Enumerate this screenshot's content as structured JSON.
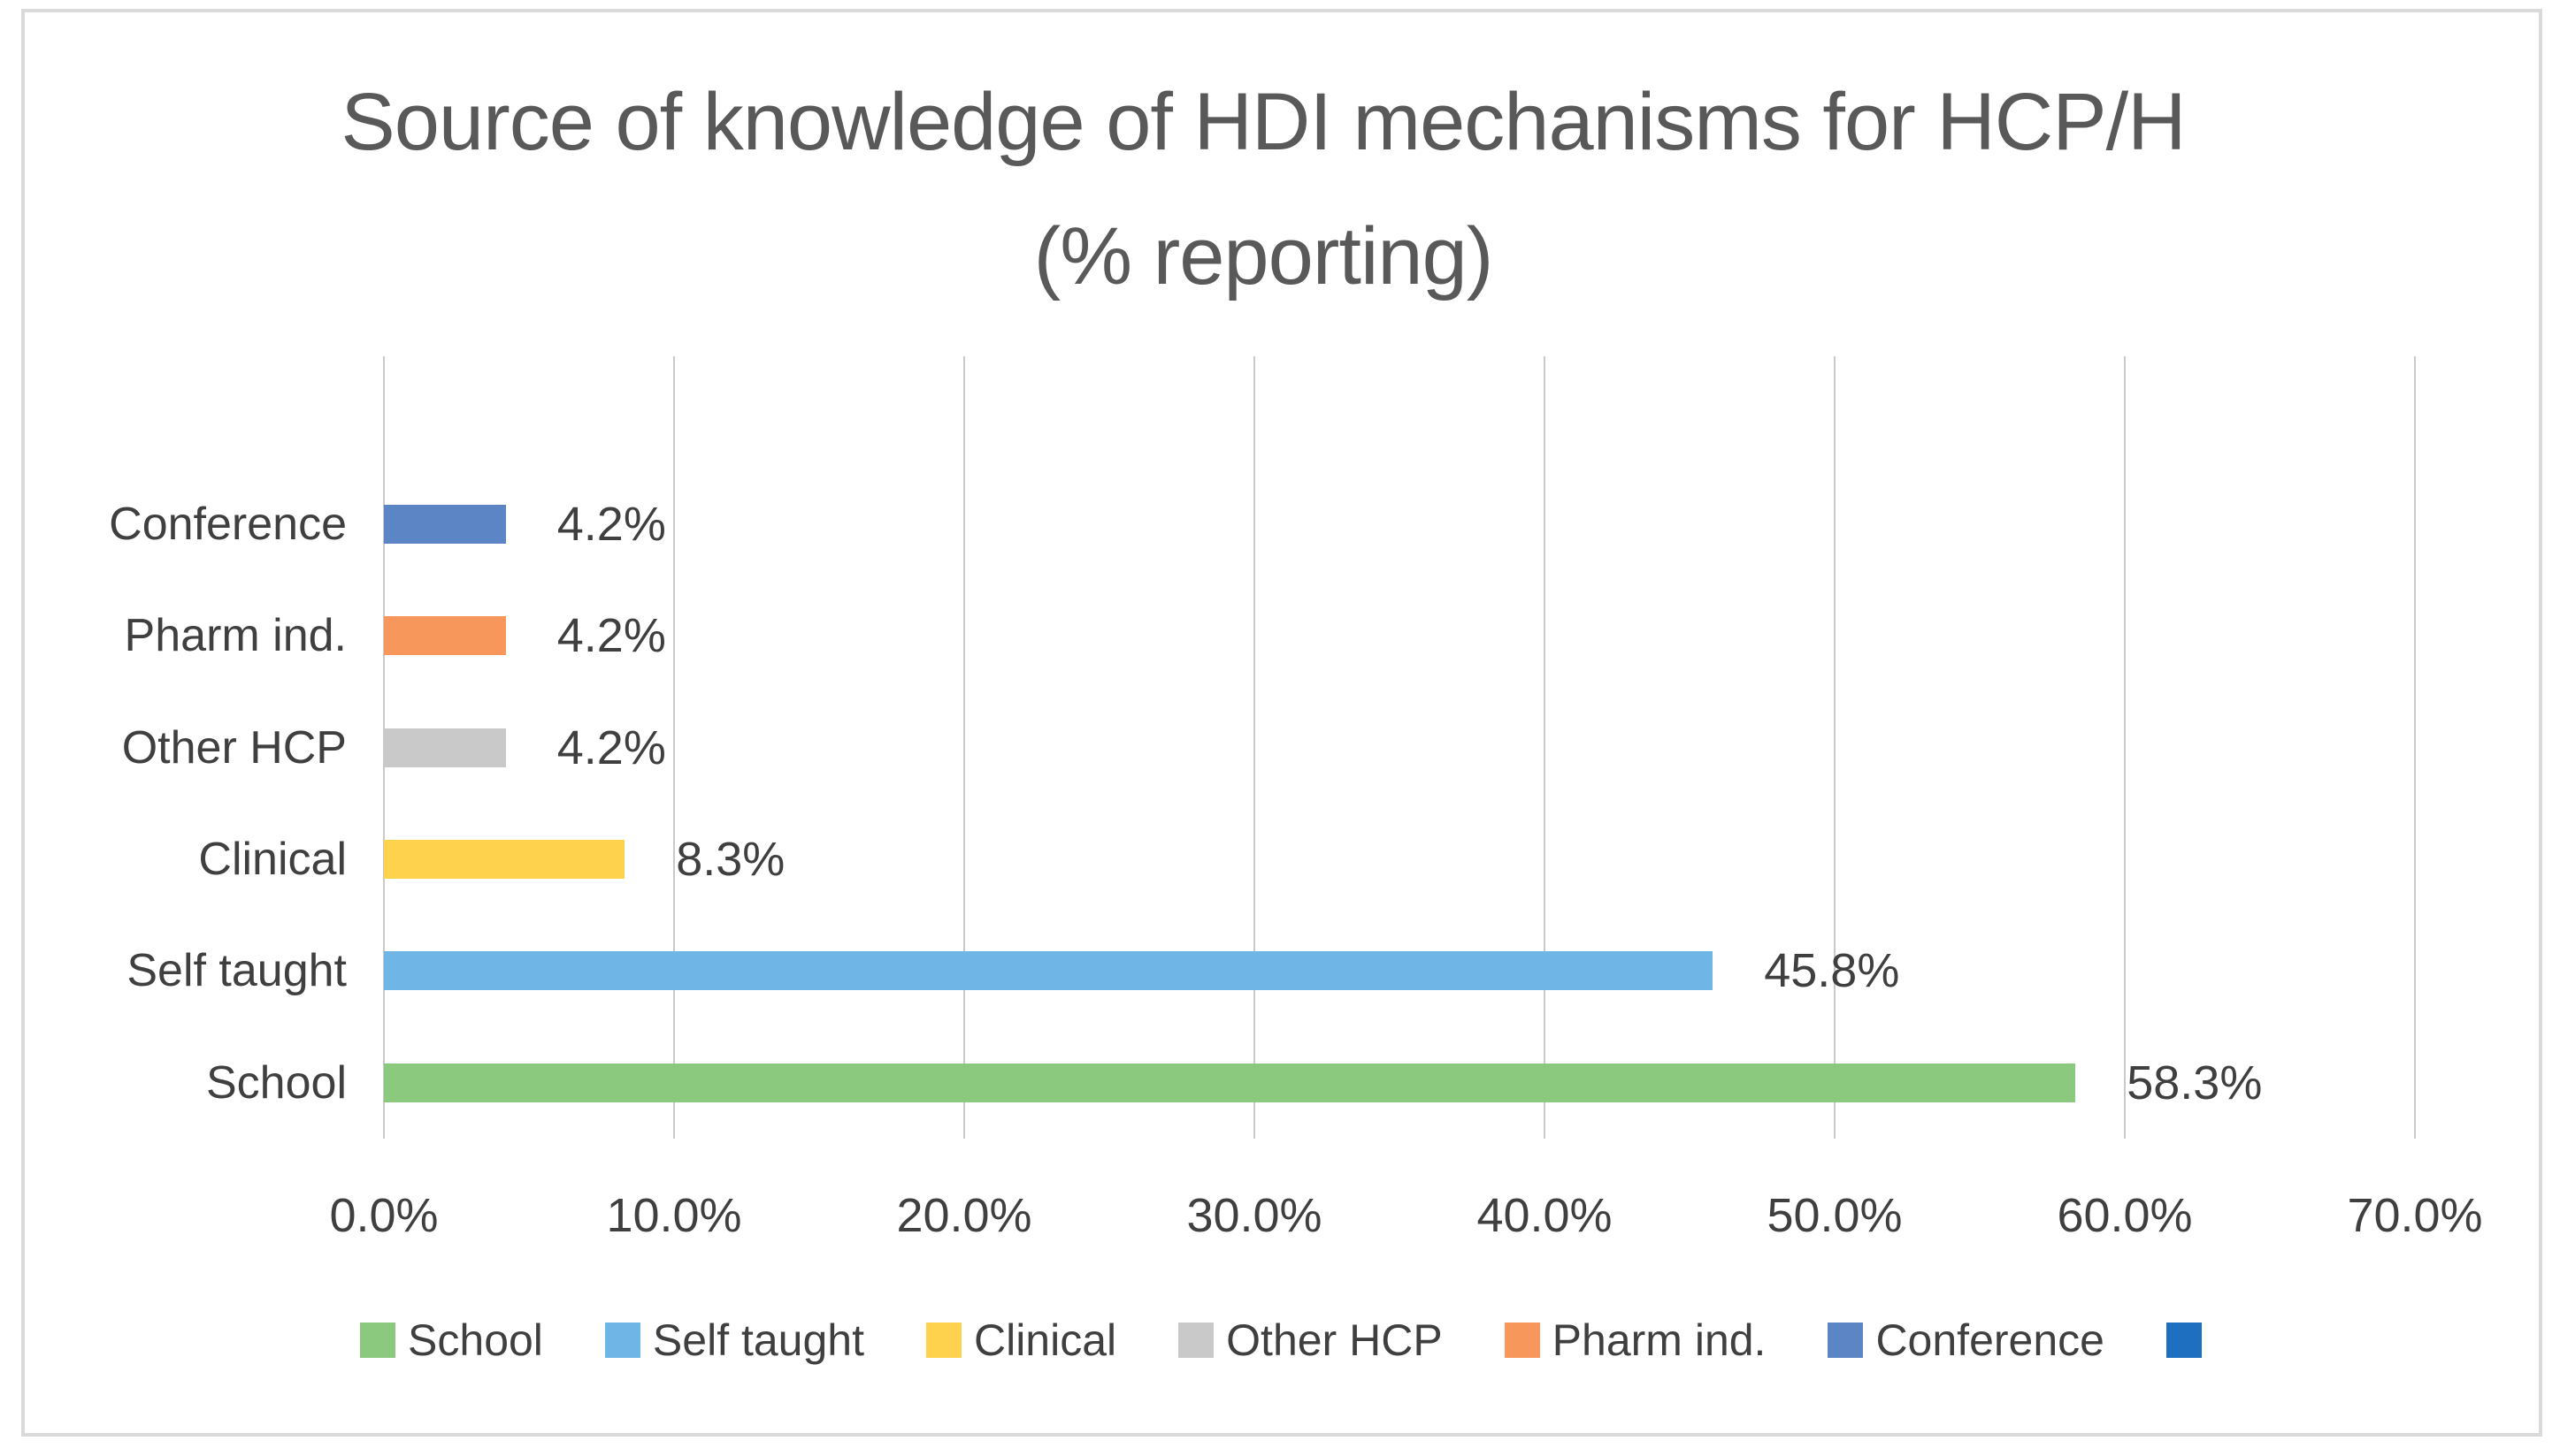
{
  "frame": {
    "background": "#FFFFFF",
    "border_color": "#DADADA"
  },
  "text_colors": {
    "title": "#595959",
    "labels": "#3F3F3F"
  },
  "chart_data": {
    "type": "bar",
    "orientation": "horizontal",
    "title": "Source of knowledge of HDI mechanisms for HCP/H (% reporting)",
    "title_lines": [
      "Source of knowledge of HDI mechanisms for HCP/H",
      "(% reporting)"
    ],
    "xlabel": "",
    "ylabel": "",
    "xlim": [
      0,
      70
    ],
    "grid": "vertical-gridlines-on",
    "gridline_color": "#C9C9C9",
    "legend_position": "bottom",
    "x_tick_values": [
      0,
      10,
      20,
      30,
      40,
      50,
      60,
      70
    ],
    "x_tick_labels": [
      "0.0%",
      "10.0%",
      "20.0%",
      "30.0%",
      "40.0%",
      "50.0%",
      "60.0%",
      "70.0%"
    ],
    "rows_top_to_bottom": [
      {
        "category": "",
        "value": 0,
        "value_label": "",
        "color": "#1F6FC0"
      },
      {
        "category": "Conference",
        "value": 4.2,
        "value_label": "4.2%",
        "color": "#5C85C5"
      },
      {
        "category": "Pharm ind.",
        "value": 4.2,
        "value_label": "4.2%",
        "color": "#F8975B"
      },
      {
        "category": "Other HCP",
        "value": 4.2,
        "value_label": "4.2%",
        "color": "#C9C9C9"
      },
      {
        "category": "Clinical",
        "value": 8.3,
        "value_label": "8.3%",
        "color": "#FFD24D"
      },
      {
        "category": "Self taught",
        "value": 45.8,
        "value_label": "45.8%",
        "color": "#6FB6E6"
      },
      {
        "category": "School",
        "value": 58.3,
        "value_label": "58.3%",
        "color": "#8BC97F"
      }
    ],
    "legend": [
      {
        "label": "School",
        "color": "#8BC97F"
      },
      {
        "label": "Self taught",
        "color": "#6FB6E6"
      },
      {
        "label": "Clinical",
        "color": "#FFD24D"
      },
      {
        "label": "Other HCP",
        "color": "#C9C9C9"
      },
      {
        "label": "Pharm ind.",
        "color": "#F8975B"
      },
      {
        "label": "Conference",
        "color": "#5C85C5"
      },
      {
        "label": "",
        "color": "#1F6FC0"
      }
    ]
  }
}
